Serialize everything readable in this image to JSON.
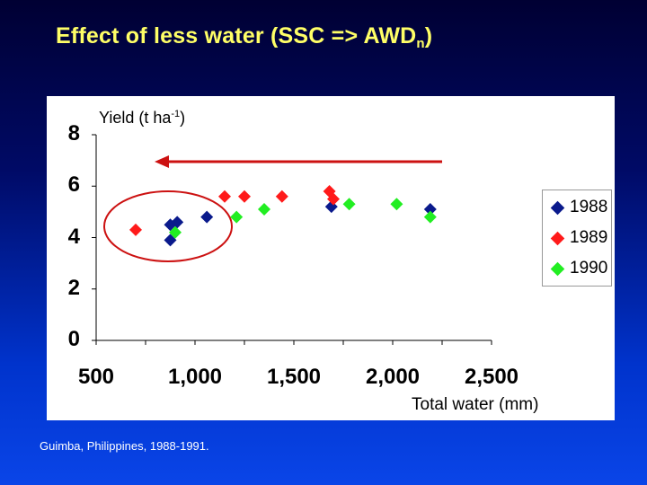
{
  "title": {
    "main": "Effect of less water (SSC => AWD",
    "sub": "n",
    "close": ")"
  },
  "footnote": "Guimba, Philippines, 1988-1991.",
  "colors": {
    "s1988": "#0a1a8c",
    "s1989": "#ff1a1a",
    "s1990": "#22ee22",
    "arrow": "#cc1111",
    "ellipse": "#cc1111"
  },
  "chart_data": {
    "type": "scatter",
    "ylabel_main": "Yield (t ha",
    "ylabel_sup": "-1",
    "ylabel_close": ")",
    "xlabel": "Total water (mm)",
    "xlim": [
      500,
      2500
    ],
    "ylim": [
      0,
      8
    ],
    "x_ticks": [
      "500",
      "1,000",
      "1,500",
      "2,000",
      "2,500"
    ],
    "x_tick_values": [
      500,
      1000,
      1500,
      2000,
      2500
    ],
    "y_ticks": [
      "0",
      "2",
      "4",
      "6",
      "8"
    ],
    "y_tick_values": [
      0,
      2,
      4,
      6,
      8
    ],
    "grid": false,
    "legend_position": "right",
    "series": [
      {
        "name": "1988",
        "color_key": "s1988",
        "points": [
          [
            875,
            3.9
          ],
          [
            875,
            4.5
          ],
          [
            910,
            4.6
          ],
          [
            1060,
            4.8
          ],
          [
            1690,
            5.2
          ],
          [
            2190,
            5.1
          ]
        ]
      },
      {
        "name": "1989",
        "color_key": "s1989",
        "points": [
          [
            700,
            4.3
          ],
          [
            1150,
            5.6
          ],
          [
            1250,
            5.6
          ],
          [
            1440,
            5.6
          ],
          [
            1680,
            5.8
          ],
          [
            1700,
            5.5
          ]
        ]
      },
      {
        "name": "1990",
        "color_key": "s1990",
        "points": [
          [
            900,
            4.2
          ],
          [
            1210,
            4.8
          ],
          [
            1350,
            5.1
          ],
          [
            1780,
            5.3
          ],
          [
            2020,
            5.3
          ],
          [
            2190,
            4.8
          ]
        ]
      }
    ]
  }
}
